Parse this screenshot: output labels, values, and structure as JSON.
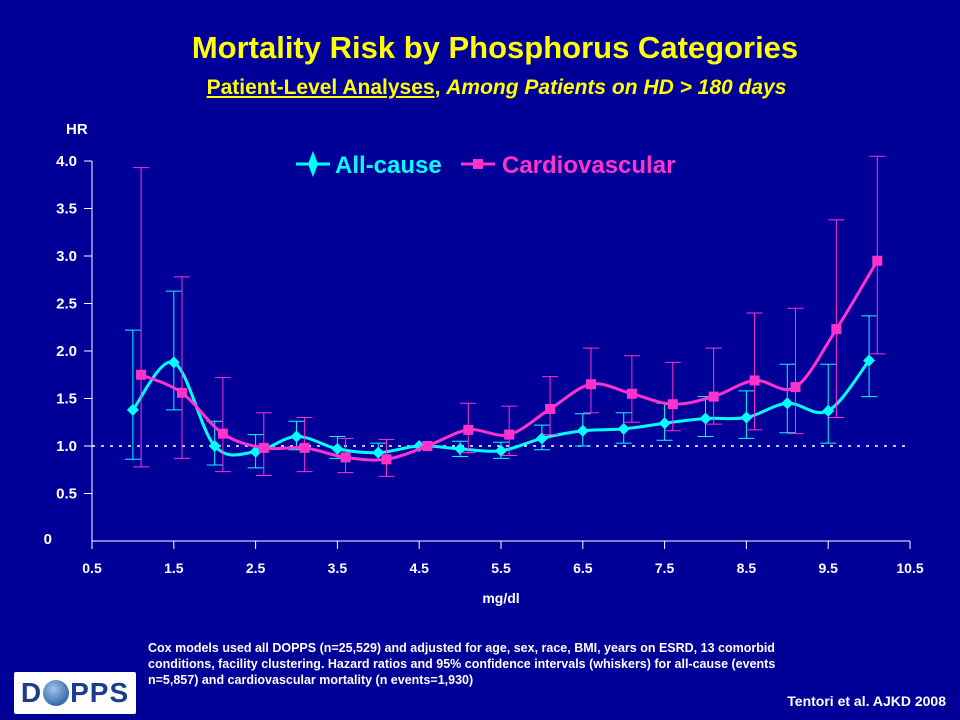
{
  "title": "Mortality Risk by Phosphorus Categories",
  "subtitle": {
    "underlined": "Patient-Level Analyses",
    "separator": ", ",
    "italic": "Among Patients on HD > 180 days"
  },
  "colors": {
    "background": "#000099",
    "title": "#ffff00",
    "all_cause": "#00ffff",
    "cardiovascular": "#ff33cc",
    "text": "#ffffff"
  },
  "chart_data": {
    "type": "line",
    "ylabel": "HR",
    "xlabel": "mg/dl",
    "xlim": [
      0.5,
      10.5
    ],
    "ylim": [
      0,
      4.0
    ],
    "xticks": [
      "0.5",
      "1.5",
      "2.5",
      "3.5",
      "4.5",
      "5.5",
      "6.5",
      "7.5",
      "8.5",
      "9.5",
      "10.5"
    ],
    "yticks": [
      "0",
      "0.5",
      "1.0",
      "1.5",
      "2.0",
      "2.5",
      "3.0",
      "3.5",
      "4.0"
    ],
    "reference_line": 1.0,
    "legend_position": "top-center",
    "series": [
      {
        "name": "All-cause",
        "marker": "diamond",
        "color": "#00ffff",
        "x": [
          1.0,
          1.5,
          2.0,
          2.5,
          3.0,
          3.5,
          4.0,
          4.5,
          5.0,
          5.5,
          6.0,
          6.5,
          7.0,
          7.5,
          8.0,
          8.5,
          9.0,
          9.5,
          10.0
        ],
        "y": [
          1.38,
          1.88,
          1.0,
          0.94,
          1.1,
          0.97,
          0.93,
          1.0,
          0.97,
          0.95,
          1.08,
          1.16,
          1.18,
          1.24,
          1.29,
          1.3,
          1.45,
          1.37,
          1.9
        ],
        "lower": [
          0.86,
          1.38,
          0.8,
          0.77,
          0.96,
          0.87,
          0.85,
          1.0,
          0.89,
          0.87,
          0.96,
          1.0,
          1.03,
          1.06,
          1.1,
          1.08,
          1.14,
          1.03,
          1.52
        ],
        "upper": [
          2.22,
          2.63,
          1.26,
          1.12,
          1.26,
          1.1,
          1.03,
          1.0,
          1.05,
          1.04,
          1.22,
          1.34,
          1.35,
          1.45,
          1.52,
          1.58,
          1.86,
          1.86,
          2.37
        ]
      },
      {
        "name": "Cardiovascular",
        "marker": "square",
        "color": "#ff33cc",
        "x": [
          1.1,
          1.6,
          2.1,
          2.6,
          3.1,
          3.6,
          4.1,
          4.6,
          5.1,
          5.6,
          6.1,
          6.6,
          7.1,
          7.6,
          8.1,
          8.6,
          9.1,
          9.6,
          10.1
        ],
        "y": [
          1.75,
          1.56,
          1.13,
          0.98,
          0.98,
          0.88,
          0.86,
          1.0,
          1.17,
          1.12,
          1.39,
          1.65,
          1.55,
          1.44,
          1.52,
          1.69,
          1.62,
          2.23,
          2.95
        ],
        "lower": [
          0.78,
          0.87,
          0.73,
          0.69,
          0.73,
          0.72,
          0.68,
          1.0,
          0.93,
          0.9,
          1.12,
          1.35,
          1.25,
          1.16,
          1.23,
          1.17,
          1.13,
          1.3,
          1.97
        ],
        "upper": [
          3.93,
          2.78,
          1.72,
          1.35,
          1.3,
          1.08,
          1.07,
          1.0,
          1.45,
          1.42,
          1.73,
          2.03,
          1.95,
          1.88,
          2.03,
          2.4,
          2.45,
          3.38,
          4.05
        ]
      }
    ]
  },
  "footnote": "Cox models used all DOPPS (n=25,529) and adjusted for age, sex, race, BMI, years on ESRD, 13 comorbid conditions, facility clustering. Hazard ratios and 95% confidence intervals (whiskers) for all-cause (events n=5,857) and cardiovascular mortality (n events=1,930)",
  "citation": "Tentori et al. AJKD 2008",
  "logo": {
    "left": "D",
    "right": "PPS"
  }
}
